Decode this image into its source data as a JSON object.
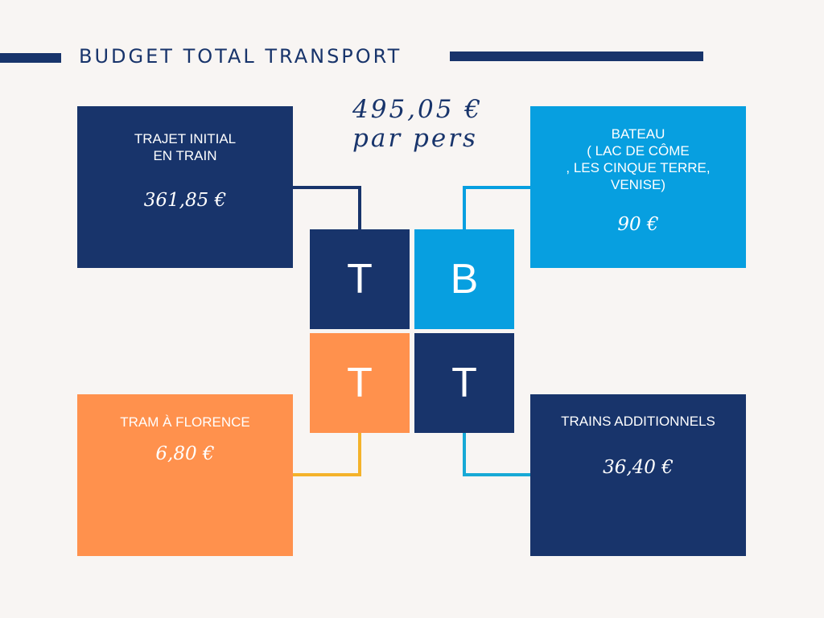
{
  "header": {
    "title": "BUDGET TOTAL TRANSPORT"
  },
  "total": {
    "amount": "495,05 €",
    "unit": "par pers"
  },
  "tiles": {
    "top_left": "T",
    "top_right": "B",
    "bottom_left": "T",
    "bottom_right": "T"
  },
  "cards": {
    "train_initial": {
      "label_line1": "TRAJET INITIAL",
      "label_line2": "EN TRAIN",
      "amount": "361,85 €"
    },
    "bateau": {
      "label_line1": "BATEAU",
      "label_line2": "( LAC DE CÔME",
      "label_line3": ", LES CINQUE TERRE,",
      "label_line4": "VENISE)",
      "amount": "90 €"
    },
    "tram": {
      "label": "TRAM À FLORENCE",
      "amount": "6,80 €"
    },
    "trains_add": {
      "label": "TRAINS ADDITIONNELS",
      "amount": "36,40 €"
    }
  },
  "colors": {
    "navy": "#18346b",
    "sky": "#079fe0",
    "orange": "#ff914d",
    "yellow": "#f4b22a",
    "teal": "#17a9d6",
    "background": "#f8f5f3"
  }
}
